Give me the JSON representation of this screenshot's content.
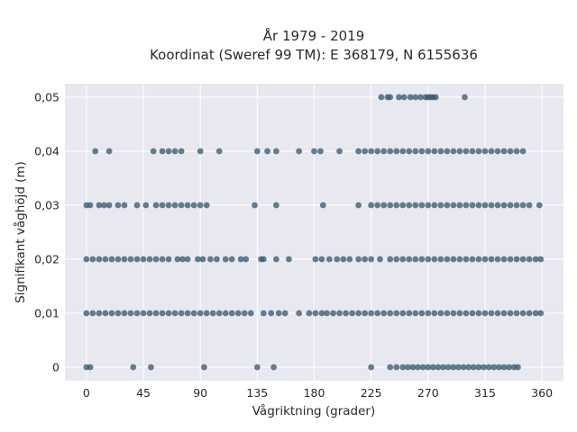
{
  "chart_data": {
    "type": "scatter",
    "title_line1": "År 1979 - 2019",
    "title_line2": "Koordinat (Sweref 99 TM): E 368179, N 6155636",
    "xlabel": "Vågriktning (grader)",
    "ylabel": "Signifikant våghöjd (m)",
    "xlim": [
      -17,
      377
    ],
    "ylim": [
      -0.0025,
      0.0525
    ],
    "x_ticks": [
      0,
      45,
      90,
      135,
      180,
      225,
      270,
      315,
      360
    ],
    "x_tick_labels": [
      "0",
      "45",
      "90",
      "135",
      "180",
      "225",
      "270",
      "315",
      "360"
    ],
    "y_ticks": [
      0,
      0.01,
      0.02,
      0.03,
      0.04,
      0.05
    ],
    "y_tick_labels": [
      "0",
      "0,01",
      "0,02",
      "0,03",
      "0,04",
      "0,05"
    ],
    "grid": true,
    "colors": {
      "plot_background": "#e8e8f1",
      "grid": "#ffffff",
      "marker": "#3b5a70",
      "text": "#2a2a2a"
    },
    "series": [
      {
        "points": [
          [
            0,
            0
          ],
          [
            3,
            0
          ],
          [
            37,
            0
          ],
          [
            51,
            0
          ],
          [
            93,
            0
          ],
          [
            135,
            0
          ],
          [
            148,
            0
          ],
          [
            225,
            0
          ],
          [
            240,
            0
          ],
          [
            245,
            0
          ],
          [
            250,
            0
          ],
          [
            254,
            0
          ],
          [
            258,
            0
          ],
          [
            262,
            0
          ],
          [
            266,
            0
          ],
          [
            270,
            0
          ],
          [
            274,
            0
          ],
          [
            278,
            0
          ],
          [
            282,
            0
          ],
          [
            286,
            0
          ],
          [
            290,
            0
          ],
          [
            294,
            0
          ],
          [
            298,
            0
          ],
          [
            302,
            0
          ],
          [
            306,
            0
          ],
          [
            310,
            0
          ],
          [
            314,
            0
          ],
          [
            318,
            0
          ],
          [
            322,
            0
          ],
          [
            326,
            0
          ],
          [
            330,
            0
          ],
          [
            334,
            0
          ],
          [
            338,
            0
          ],
          [
            341,
            0
          ],
          [
            0,
            0.01
          ],
          [
            5,
            0.01
          ],
          [
            10,
            0.01
          ],
          [
            15,
            0.01
          ],
          [
            20,
            0.01
          ],
          [
            25,
            0.01
          ],
          [
            30,
            0.01
          ],
          [
            35,
            0.01
          ],
          [
            40,
            0.01
          ],
          [
            45,
            0.01
          ],
          [
            50,
            0.01
          ],
          [
            55,
            0.01
          ],
          [
            60,
            0.01
          ],
          [
            65,
            0.01
          ],
          [
            70,
            0.01
          ],
          [
            75,
            0.01
          ],
          [
            80,
            0.01
          ],
          [
            85,
            0.01
          ],
          [
            90,
            0.01
          ],
          [
            95,
            0.01
          ],
          [
            100,
            0.01
          ],
          [
            105,
            0.01
          ],
          [
            110,
            0.01
          ],
          [
            115,
            0.01
          ],
          [
            120,
            0.01
          ],
          [
            125,
            0.01
          ],
          [
            130,
            0.01
          ],
          [
            140,
            0.01
          ],
          [
            146,
            0.01
          ],
          [
            152,
            0.01
          ],
          [
            157,
            0.01
          ],
          [
            168,
            0.01
          ],
          [
            176,
            0.01
          ],
          [
            181,
            0.01
          ],
          [
            186,
            0.01
          ],
          [
            190,
            0.01
          ],
          [
            195,
            0.01
          ],
          [
            200,
            0.01
          ],
          [
            205,
            0.01
          ],
          [
            210,
            0.01
          ],
          [
            215,
            0.01
          ],
          [
            220,
            0.01
          ],
          [
            225,
            0.01
          ],
          [
            230,
            0.01
          ],
          [
            235,
            0.01
          ],
          [
            240,
            0.01
          ],
          [
            245,
            0.01
          ],
          [
            250,
            0.01
          ],
          [
            255,
            0.01
          ],
          [
            260,
            0.01
          ],
          [
            265,
            0.01
          ],
          [
            270,
            0.01
          ],
          [
            275,
            0.01
          ],
          [
            280,
            0.01
          ],
          [
            285,
            0.01
          ],
          [
            290,
            0.01
          ],
          [
            295,
            0.01
          ],
          [
            300,
            0.01
          ],
          [
            305,
            0.01
          ],
          [
            310,
            0.01
          ],
          [
            315,
            0.01
          ],
          [
            320,
            0.01
          ],
          [
            325,
            0.01
          ],
          [
            330,
            0.01
          ],
          [
            335,
            0.01
          ],
          [
            340,
            0.01
          ],
          [
            345,
            0.01
          ],
          [
            350,
            0.01
          ],
          [
            355,
            0.01
          ],
          [
            359,
            0.01
          ],
          [
            0,
            0.02
          ],
          [
            5,
            0.02
          ],
          [
            10,
            0.02
          ],
          [
            15,
            0.02
          ],
          [
            20,
            0.02
          ],
          [
            25,
            0.02
          ],
          [
            30,
            0.02
          ],
          [
            35,
            0.02
          ],
          [
            40,
            0.02
          ],
          [
            45,
            0.02
          ],
          [
            50,
            0.02
          ],
          [
            55,
            0.02
          ],
          [
            60,
            0.02
          ],
          [
            65,
            0.02
          ],
          [
            72,
            0.02
          ],
          [
            76,
            0.02
          ],
          [
            80,
            0.02
          ],
          [
            88,
            0.02
          ],
          [
            92,
            0.02
          ],
          [
            98,
            0.02
          ],
          [
            103,
            0.02
          ],
          [
            110,
            0.02
          ],
          [
            115,
            0.02
          ],
          [
            122,
            0.02
          ],
          [
            126,
            0.02
          ],
          [
            138,
            0.02
          ],
          [
            140,
            0.02
          ],
          [
            150,
            0.02
          ],
          [
            160,
            0.02
          ],
          [
            181,
            0.02
          ],
          [
            186,
            0.02
          ],
          [
            192,
            0.02
          ],
          [
            198,
            0.02
          ],
          [
            203,
            0.02
          ],
          [
            208,
            0.02
          ],
          [
            215,
            0.02
          ],
          [
            220,
            0.02
          ],
          [
            225,
            0.02
          ],
          [
            232,
            0.02
          ],
          [
            240,
            0.02
          ],
          [
            245,
            0.02
          ],
          [
            250,
            0.02
          ],
          [
            255,
            0.02
          ],
          [
            260,
            0.02
          ],
          [
            265,
            0.02
          ],
          [
            270,
            0.02
          ],
          [
            275,
            0.02
          ],
          [
            280,
            0.02
          ],
          [
            285,
            0.02
          ],
          [
            290,
            0.02
          ],
          [
            295,
            0.02
          ],
          [
            300,
            0.02
          ],
          [
            305,
            0.02
          ],
          [
            310,
            0.02
          ],
          [
            315,
            0.02
          ],
          [
            320,
            0.02
          ],
          [
            325,
            0.02
          ],
          [
            330,
            0.02
          ],
          [
            335,
            0.02
          ],
          [
            340,
            0.02
          ],
          [
            345,
            0.02
          ],
          [
            350,
            0.02
          ],
          [
            355,
            0.02
          ],
          [
            359,
            0.02
          ],
          [
            0,
            0.03
          ],
          [
            3,
            0.03
          ],
          [
            10,
            0.03
          ],
          [
            14,
            0.03
          ],
          [
            18,
            0.03
          ],
          [
            25,
            0.03
          ],
          [
            30,
            0.03
          ],
          [
            40,
            0.03
          ],
          [
            47,
            0.03
          ],
          [
            55,
            0.03
          ],
          [
            60,
            0.03
          ],
          [
            65,
            0.03
          ],
          [
            70,
            0.03
          ],
          [
            75,
            0.03
          ],
          [
            80,
            0.03
          ],
          [
            85,
            0.03
          ],
          [
            90,
            0.03
          ],
          [
            95,
            0.03
          ],
          [
            133,
            0.03
          ],
          [
            150,
            0.03
          ],
          [
            187,
            0.03
          ],
          [
            215,
            0.03
          ],
          [
            225,
            0.03
          ],
          [
            230,
            0.03
          ],
          [
            235,
            0.03
          ],
          [
            240,
            0.03
          ],
          [
            245,
            0.03
          ],
          [
            250,
            0.03
          ],
          [
            255,
            0.03
          ],
          [
            260,
            0.03
          ],
          [
            265,
            0.03
          ],
          [
            270,
            0.03
          ],
          [
            275,
            0.03
          ],
          [
            280,
            0.03
          ],
          [
            285,
            0.03
          ],
          [
            290,
            0.03
          ],
          [
            295,
            0.03
          ],
          [
            300,
            0.03
          ],
          [
            305,
            0.03
          ],
          [
            310,
            0.03
          ],
          [
            315,
            0.03
          ],
          [
            320,
            0.03
          ],
          [
            325,
            0.03
          ],
          [
            330,
            0.03
          ],
          [
            335,
            0.03
          ],
          [
            340,
            0.03
          ],
          [
            345,
            0.03
          ],
          [
            350,
            0.03
          ],
          [
            358,
            0.03
          ],
          [
            7,
            0.04
          ],
          [
            18,
            0.04
          ],
          [
            53,
            0.04
          ],
          [
            60,
            0.04
          ],
          [
            65,
            0.04
          ],
          [
            70,
            0.04
          ],
          [
            75,
            0.04
          ],
          [
            90,
            0.04
          ],
          [
            105,
            0.04
          ],
          [
            135,
            0.04
          ],
          [
            143,
            0.04
          ],
          [
            150,
            0.04
          ],
          [
            168,
            0.04
          ],
          [
            180,
            0.04
          ],
          [
            185,
            0.04
          ],
          [
            200,
            0.04
          ],
          [
            215,
            0.04
          ],
          [
            220,
            0.04
          ],
          [
            225,
            0.04
          ],
          [
            230,
            0.04
          ],
          [
            235,
            0.04
          ],
          [
            240,
            0.04
          ],
          [
            245,
            0.04
          ],
          [
            250,
            0.04
          ],
          [
            255,
            0.04
          ],
          [
            260,
            0.04
          ],
          [
            265,
            0.04
          ],
          [
            270,
            0.04
          ],
          [
            275,
            0.04
          ],
          [
            280,
            0.04
          ],
          [
            285,
            0.04
          ],
          [
            290,
            0.04
          ],
          [
            295,
            0.04
          ],
          [
            300,
            0.04
          ],
          [
            305,
            0.04
          ],
          [
            310,
            0.04
          ],
          [
            315,
            0.04
          ],
          [
            320,
            0.04
          ],
          [
            325,
            0.04
          ],
          [
            330,
            0.04
          ],
          [
            335,
            0.04
          ],
          [
            340,
            0.04
          ],
          [
            345,
            0.04
          ],
          [
            233,
            0.05
          ],
          [
            238,
            0.05
          ],
          [
            240,
            0.05
          ],
          [
            247,
            0.05
          ],
          [
            251,
            0.05
          ],
          [
            256,
            0.05
          ],
          [
            260,
            0.05
          ],
          [
            264,
            0.05
          ],
          [
            268,
            0.05
          ],
          [
            270,
            0.05
          ],
          [
            272,
            0.05
          ],
          [
            274,
            0.05
          ],
          [
            276,
            0.05
          ],
          [
            299,
            0.05
          ]
        ]
      }
    ]
  }
}
